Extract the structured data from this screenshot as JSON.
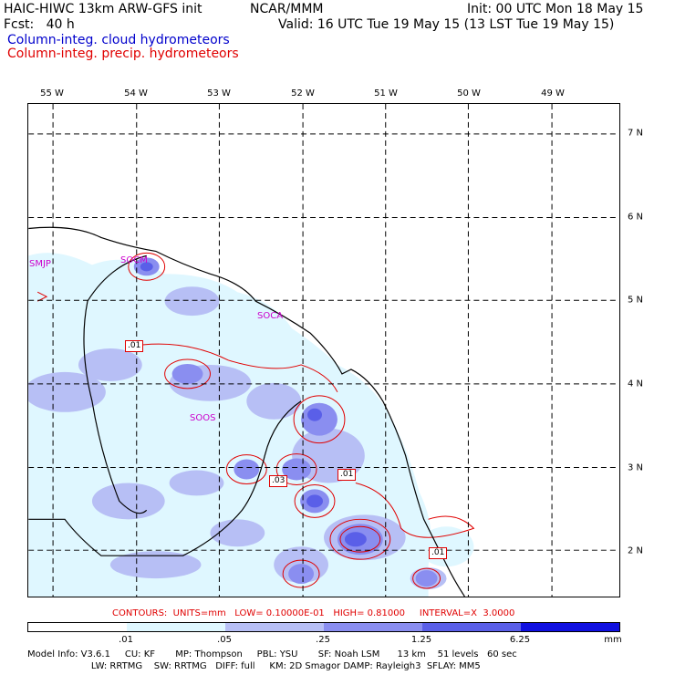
{
  "header": {
    "title_left": "HAIC-HIWC 13km ARW-GFS init",
    "org": "NCAR/MMM",
    "init": "Init: 00 UTC Mon 18 May 15",
    "fcst": "Fcst:   40 h",
    "valid": "Valid: 16 UTC Tue 19 May 15 (13 LST Tue 19 May 15)",
    "field_cloud": "Column-integ. cloud hydrometeors",
    "field_precip": "Column-integ. precip. hydrometeors"
  },
  "colors": {
    "cloud_text": "#0000cc",
    "precip_text": "#e00000",
    "station_text": "#cc00cc",
    "shade_1": "#dff7ff",
    "shade_2": "#b7bff5",
    "shade_3": "#8a8ef0",
    "shade_4": "#5a5fe8",
    "shade_5": "#2c31e0",
    "shade_6": "#1010e0"
  },
  "map": {
    "lon_labels": [
      "55 W",
      "54 W",
      "53 W",
      "52 W",
      "51 W",
      "50 W",
      "49 W"
    ],
    "lat_labels": [
      "7 N",
      "6 N",
      "5 N",
      "4 N",
      "3 N",
      "2 N"
    ],
    "stations": [
      "SMJP",
      "SOCM",
      "SOCA",
      "SOOS"
    ],
    "contour_labels": [
      ".01",
      ".03",
      ".01",
      ".01"
    ]
  },
  "contours_line": "CONTOURS:  UNITS=mm   LOW= 0.10000E-01   HIGH= 0.81000     INTERVAL=X  3.0000",
  "colorbar": {
    "ticks": [
      ".01",
      ".05",
      ".25",
      "1.25",
      "6.25"
    ],
    "unit": "mm"
  },
  "footer": {
    "line1": "Model Info: V3.6.1     CU: KF       MP: Thompson     PBL: YSU       SF: Noah LSM      13 km    51 levels   60 sec",
    "line2": "                      LW: RRTMG    SW: RRTMG   DIFF: full     KM: 2D Smagor DAMP: Rayleigh3  SFLAY: MM5"
  }
}
